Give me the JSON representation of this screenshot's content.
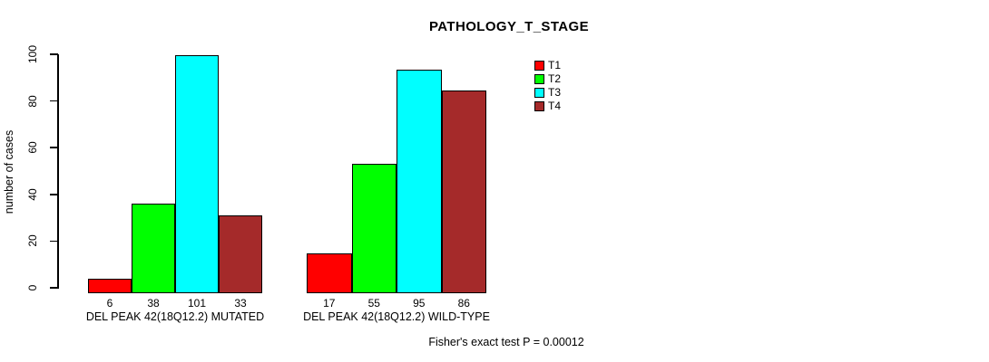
{
  "chart_data": {
    "type": "bar",
    "title": "PATHOLOGY_T_STAGE",
    "ylabel": "number of cases",
    "xlabel": "",
    "ylim": [
      0,
      100
    ],
    "yticks": [
      0,
      20,
      40,
      60,
      80,
      100
    ],
    "grid": false,
    "legend_position": "top-right",
    "bar_value_labels_shown": true,
    "categories": [
      "DEL PEAK 42(18Q12.2) MUTATED",
      "DEL PEAK 42(18Q12.2) WILD-TYPE"
    ],
    "series": [
      {
        "name": "T1",
        "color": "#FF0000",
        "values": [
          6,
          17
        ]
      },
      {
        "name": "T2",
        "color": "#00FF00",
        "values": [
          38,
          55
        ]
      },
      {
        "name": "T3",
        "color": "#00FFFF",
        "values": [
          101,
          95
        ]
      },
      {
        "name": "T4",
        "color": "#A52A2A",
        "values": [
          33,
          86
        ]
      }
    ],
    "annotation": "Fisher's exact test P = 0.00012",
    "colors": {
      "background": "#FFFFFF",
      "axis": "#000000",
      "text": "#000000",
      "bar_border": "#000000"
    }
  }
}
